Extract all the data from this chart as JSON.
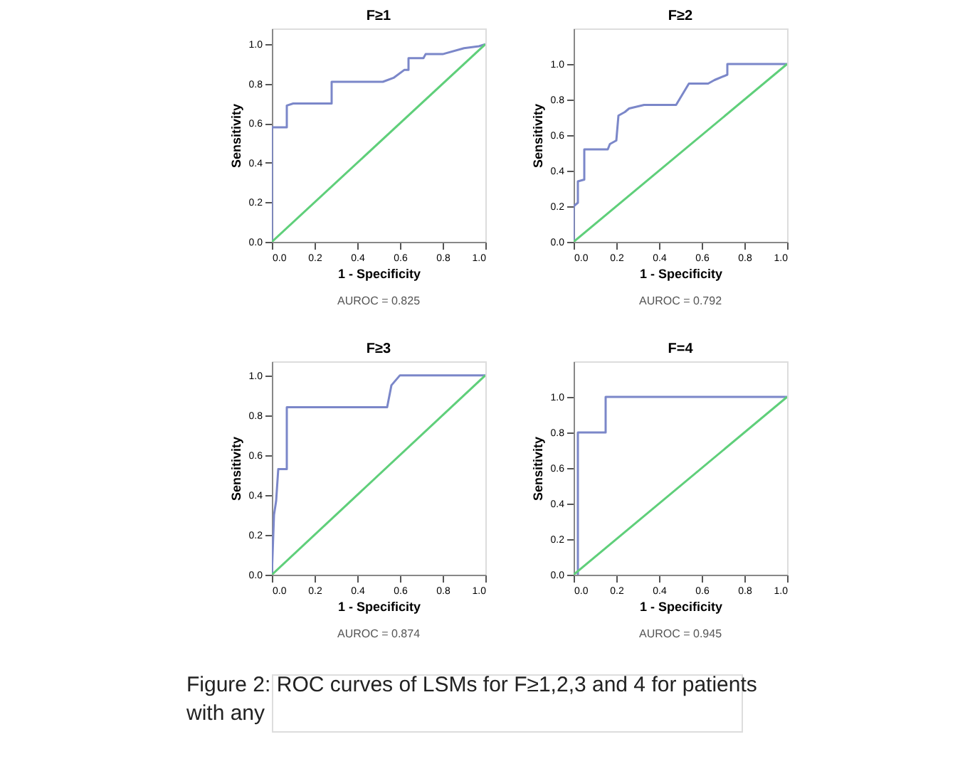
{
  "chart_data": [
    {
      "type": "line",
      "title": "F≥1",
      "xlabel": "1 - Specificity",
      "ylabel": "Sensitivity",
      "xlim": [
        0,
        1
      ],
      "ylim": [
        0,
        1.08
      ],
      "xticks": [
        {
          "value": 0,
          "label": "0.0"
        },
        {
          "value": 0.2,
          "label": "0.2"
        },
        {
          "value": 0.4,
          "label": "0.4"
        },
        {
          "value": 0.6,
          "label": "0.6"
        },
        {
          "value": 0.8,
          "label": "0.8"
        },
        {
          "value": 1,
          "label": "1.0"
        }
      ],
      "yticks": [
        {
          "value": 0,
          "label": "0.0"
        },
        {
          "value": 0.2,
          "label": "0.2"
        },
        {
          "value": 0.4,
          "label": "0.4"
        },
        {
          "value": 0.6,
          "label": "0.6"
        },
        {
          "value": 0.8,
          "label": "0.8"
        },
        {
          "value": 1,
          "label": "1.0"
        }
      ],
      "grid": false,
      "legend": false,
      "marker": "none",
      "line_style": "solid",
      "series": [
        {
          "color": "#7b87c9",
          "x": [
            0,
            0,
            0.07,
            0.07,
            0.1,
            0.28,
            0.28,
            0.52,
            0.57,
            0.62,
            0.64,
            0.64,
            0.71,
            0.72,
            0.8,
            0.9,
            0.97,
            1
          ],
          "values": [
            0,
            0.58,
            0.58,
            0.69,
            0.7,
            0.7,
            0.81,
            0.81,
            0.83,
            0.87,
            0.87,
            0.93,
            0.93,
            0.95,
            0.95,
            0.98,
            0.99,
            1
          ]
        },
        {
          "color": "#5fcf7a",
          "x": [
            0,
            1
          ],
          "values": [
            0,
            1
          ]
        }
      ],
      "annotations": [
        "AUROC = 0.825"
      ]
    },
    {
      "type": "line",
      "title": "F≥2",
      "xlabel": "1 - Specificity",
      "ylabel": "Sensitivity",
      "xlim": [
        0,
        1
      ],
      "ylim": [
        0,
        1.2
      ],
      "xticks": [
        {
          "value": 0,
          "label": "0.0"
        },
        {
          "value": 0.2,
          "label": "0.2"
        },
        {
          "value": 0.4,
          "label": "0.4"
        },
        {
          "value": 0.6,
          "label": "0.6"
        },
        {
          "value": 0.8,
          "label": "0.8"
        },
        {
          "value": 1,
          "label": "1.0"
        }
      ],
      "yticks": [
        {
          "value": 0,
          "label": "0.0"
        },
        {
          "value": 0.2,
          "label": "0.2"
        },
        {
          "value": 0.4,
          "label": "0.4"
        },
        {
          "value": 0.6,
          "label": "0.6"
        },
        {
          "value": 0.8,
          "label": "0.8"
        },
        {
          "value": 1,
          "label": "1.0"
        }
      ],
      "grid": false,
      "legend": false,
      "marker": "none",
      "line_style": "solid",
      "series": [
        {
          "color": "#7b87c9",
          "x": [
            0,
            0,
            0.02,
            0.02,
            0.05,
            0.05,
            0.16,
            0.17,
            0.2,
            0.21,
            0.24,
            0.26,
            0.33,
            0.48,
            0.54,
            0.63,
            0.66,
            0.72,
            0.72,
            1
          ],
          "values": [
            0,
            0.2,
            0.22,
            0.34,
            0.35,
            0.52,
            0.52,
            0.55,
            0.57,
            0.71,
            0.73,
            0.75,
            0.77,
            0.77,
            0.89,
            0.89,
            0.91,
            0.94,
            1,
            1
          ]
        },
        {
          "color": "#5fcf7a",
          "x": [
            0,
            1
          ],
          "values": [
            0,
            1
          ]
        }
      ],
      "annotations": [
        "AUROC = 0.792"
      ]
    },
    {
      "type": "line",
      "title": "F≥3",
      "xlabel": "1 - Specificity",
      "ylabel": "Sensitivity",
      "xlim": [
        0,
        1
      ],
      "ylim": [
        0,
        1.07
      ],
      "xticks": [
        {
          "value": 0,
          "label": "0.0"
        },
        {
          "value": 0.2,
          "label": "0.2"
        },
        {
          "value": 0.4,
          "label": "0.4"
        },
        {
          "value": 0.6,
          "label": "0.6"
        },
        {
          "value": 0.8,
          "label": "0.8"
        },
        {
          "value": 1,
          "label": "1.0"
        }
      ],
      "yticks": [
        {
          "value": 0,
          "label": "0.0"
        },
        {
          "value": 0.2,
          "label": "0.2"
        },
        {
          "value": 0.4,
          "label": "0.4"
        },
        {
          "value": 0.6,
          "label": "0.6"
        },
        {
          "value": 0.8,
          "label": "0.8"
        },
        {
          "value": 1,
          "label": "1.0"
        }
      ],
      "grid": false,
      "legend": false,
      "marker": "none",
      "line_style": "solid",
      "series": [
        {
          "color": "#7b87c9",
          "x": [
            0,
            0.01,
            0.02,
            0.03,
            0.07,
            0.07,
            0.54,
            0.56,
            0.6,
            1
          ],
          "values": [
            0,
            0.3,
            0.37,
            0.53,
            0.53,
            0.84,
            0.84,
            0.95,
            1,
            1
          ]
        },
        {
          "color": "#5fcf7a",
          "x": [
            0,
            1
          ],
          "values": [
            0,
            1
          ]
        }
      ],
      "annotations": [
        "AUROC = 0.874"
      ]
    },
    {
      "type": "line",
      "title": "F=4",
      "xlabel": "1 - Specificity",
      "ylabel": "Sensitivity",
      "xlim": [
        0,
        1
      ],
      "ylim": [
        0,
        1.2
      ],
      "xticks": [
        {
          "value": 0,
          "label": "0.0"
        },
        {
          "value": 0.2,
          "label": "0.2"
        },
        {
          "value": 0.4,
          "label": "0.4"
        },
        {
          "value": 0.6,
          "label": "0.6"
        },
        {
          "value": 0.8,
          "label": "0.8"
        },
        {
          "value": 1,
          "label": "1.0"
        }
      ],
      "yticks": [
        {
          "value": 0,
          "label": "0.0"
        },
        {
          "value": 0.2,
          "label": "0.2"
        },
        {
          "value": 0.4,
          "label": "0.4"
        },
        {
          "value": 0.6,
          "label": "0.6"
        },
        {
          "value": 0.8,
          "label": "0.8"
        },
        {
          "value": 1,
          "label": "1.0"
        }
      ],
      "grid": false,
      "legend": false,
      "marker": "none",
      "line_style": "solid",
      "series": [
        {
          "color": "#7b87c9",
          "x": [
            0.02,
            0.02,
            0.15,
            0.15,
            1
          ],
          "values": [
            0,
            0.8,
            0.8,
            1,
            1
          ]
        },
        {
          "color": "#5fcf7a",
          "x": [
            0,
            1
          ],
          "values": [
            0,
            1
          ]
        }
      ],
      "annotations": [
        "AUROC = 0.945",
        "Figure 2: ROC curves of LSMs for F≥1,2,3 and 4 for patients with any"
      ]
    }
  ]
}
